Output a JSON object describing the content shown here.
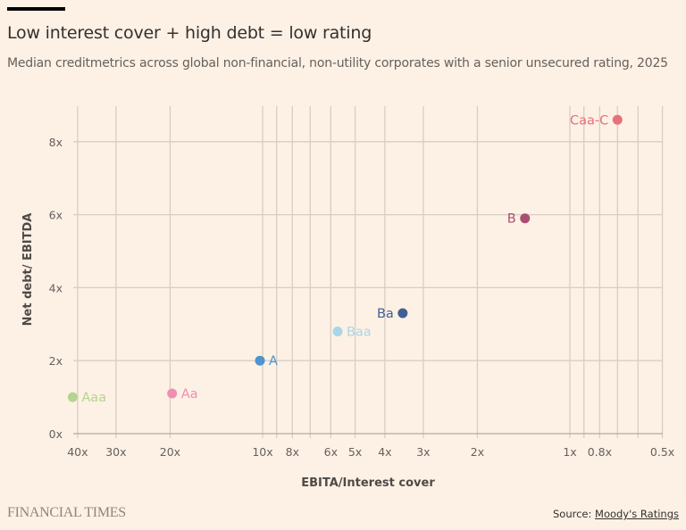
{
  "header": {
    "title": "Low interest cover + high debt = low rating",
    "subtitle": "Median creditmetrics across global non-financial, non-utility corporates with a senior unsecured rating, 2025"
  },
  "footer": {
    "brand": "FINANCIAL TIMES",
    "source_prefix": "Source: ",
    "source_link": "Moody's Ratings"
  },
  "colors": {
    "background": "#fdf1e5",
    "grid": "#d9cdc3"
  },
  "chart_data": {
    "type": "scatter",
    "title": "Low interest cover + high debt = low rating",
    "subtitle": "Median creditmetrics across global non-financial, non-utility corporates with a senior unsecured rating, 2025",
    "xlabel": "EBITA/Interest cover",
    "ylabel": "Net debt/ EBITDA",
    "x_scale": "log-reversed",
    "xlim": [
      42,
      0.5
    ],
    "ylim": [
      0,
      8.8
    ],
    "grid": true,
    "x_gridlines": [
      40,
      30,
      20,
      10,
      9,
      8,
      7,
      6,
      5,
      4,
      3,
      2,
      1,
      0.9,
      0.8,
      0.7,
      0.6,
      0.5
    ],
    "x_ticks": [
      {
        "value": 40,
        "label": "40x"
      },
      {
        "value": 30,
        "label": "30x"
      },
      {
        "value": 20,
        "label": "20x"
      },
      {
        "value": 10,
        "label": "10x"
      },
      {
        "value": 8,
        "label": "8x"
      },
      {
        "value": 6,
        "label": "6x"
      },
      {
        "value": 5,
        "label": "5x"
      },
      {
        "value": 4,
        "label": "4x"
      },
      {
        "value": 3,
        "label": "3x"
      },
      {
        "value": 2,
        "label": "2x"
      },
      {
        "value": 1,
        "label": "1x"
      },
      {
        "value": 0.8,
        "label": "0.8x"
      },
      {
        "value": 0.5,
        "label": "0.5x"
      }
    ],
    "y_ticks": [
      {
        "value": 0,
        "label": "0x"
      },
      {
        "value": 2,
        "label": "2x"
      },
      {
        "value": 4,
        "label": "4x"
      },
      {
        "value": 6,
        "label": "6x"
      },
      {
        "value": 8,
        "label": "8x"
      }
    ],
    "points": [
      {
        "label": "Aaa",
        "x": 41.5,
        "y": 1.0,
        "color": "#b6d38f",
        "label_side": "right"
      },
      {
        "label": "Aa",
        "x": 19.7,
        "y": 1.1,
        "color": "#ee8fb0",
        "label_side": "right"
      },
      {
        "label": "A",
        "x": 10.2,
        "y": 2.0,
        "color": "#4d94d0",
        "label_side": "right"
      },
      {
        "label": "Baa",
        "x": 5.7,
        "y": 2.8,
        "color": "#a9d5ea",
        "label_side": "right"
      },
      {
        "label": "Ba",
        "x": 3.5,
        "y": 3.3,
        "color": "#3f6193",
        "label_side": "left"
      },
      {
        "label": "B",
        "x": 1.4,
        "y": 5.9,
        "color": "#ab4f72",
        "label_side": "left"
      },
      {
        "label": "Caa-C",
        "x": 0.7,
        "y": 8.6,
        "color": "#e6717b",
        "label_side": "left"
      }
    ]
  }
}
